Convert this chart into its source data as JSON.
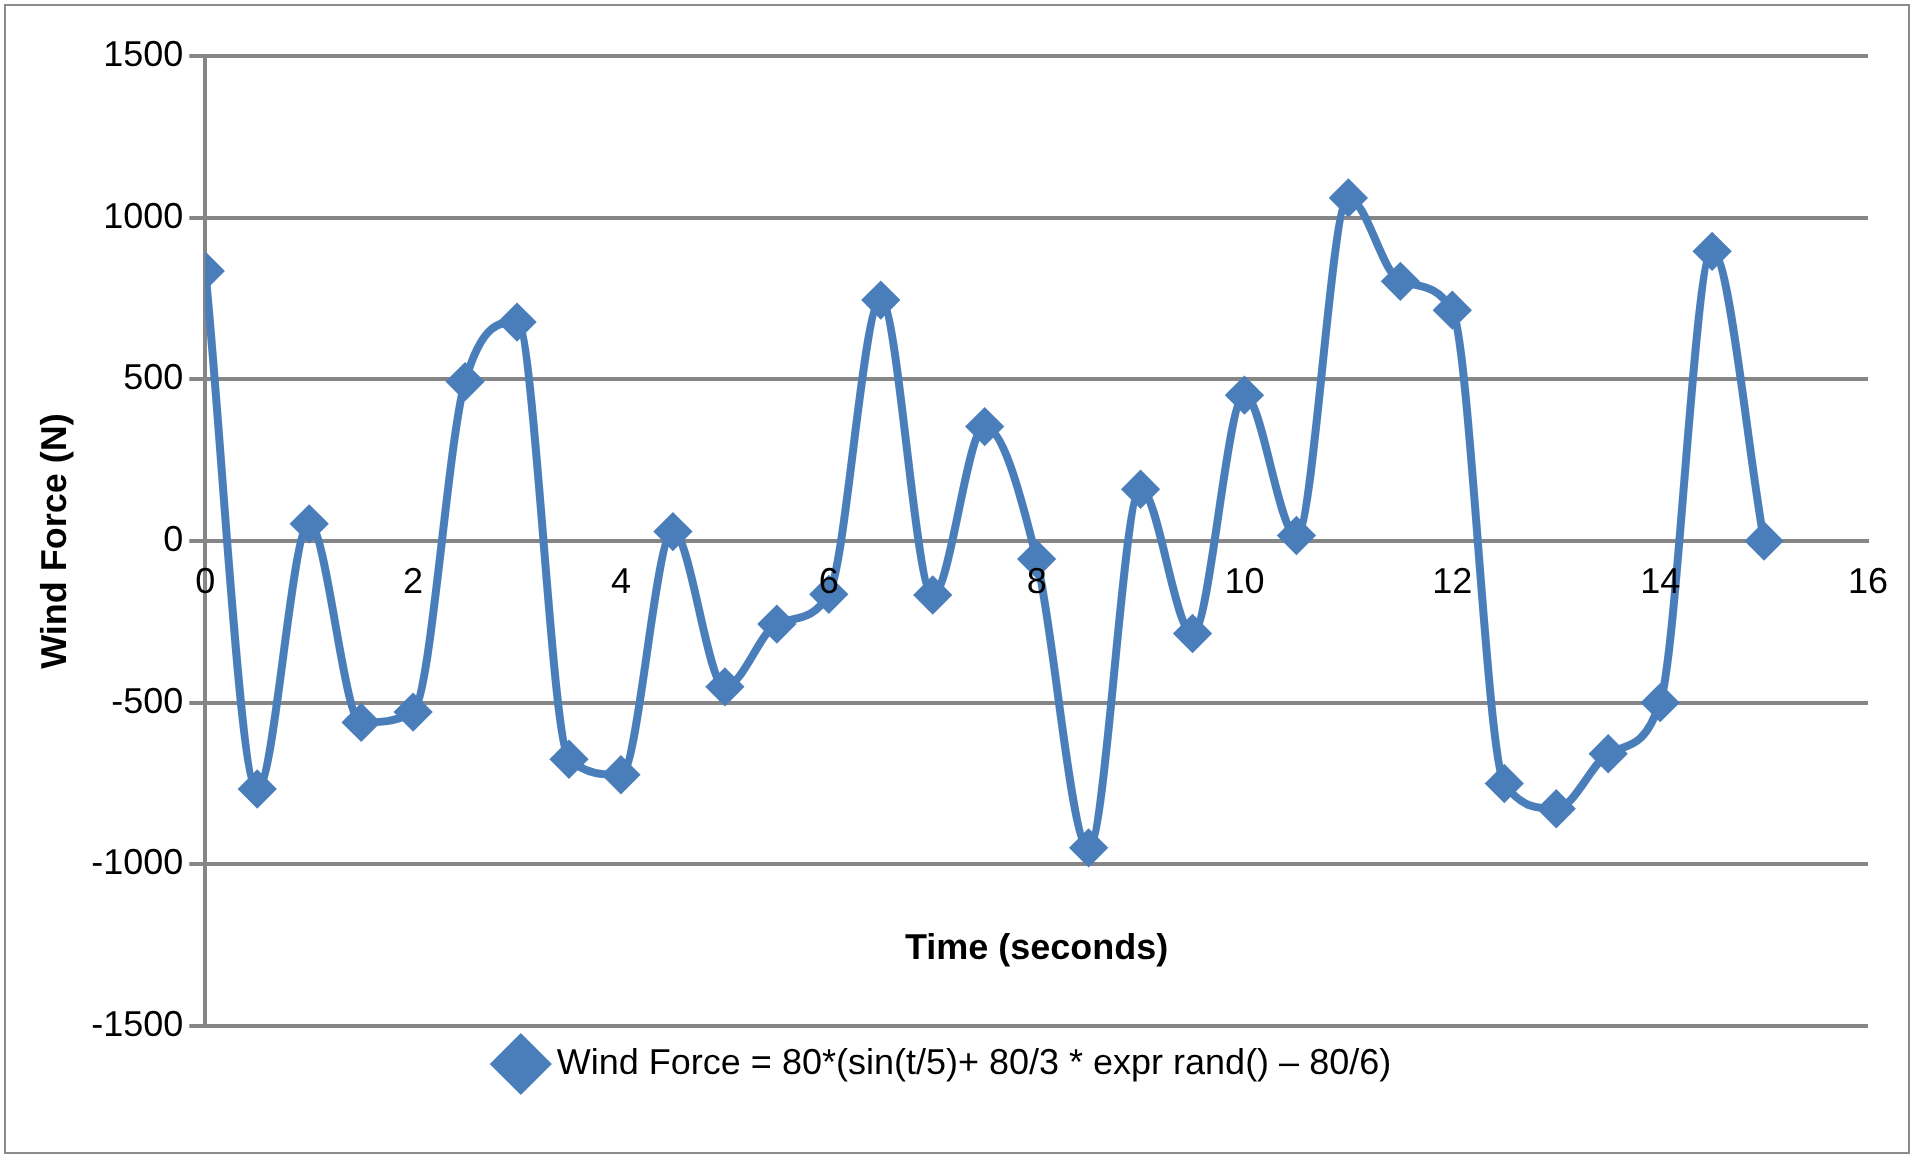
{
  "chart_data": {
    "type": "line",
    "xlabel": "Time (seconds)",
    "ylabel": "Wind Force (N)",
    "x": [
      0,
      0.5,
      1,
      1.5,
      2,
      2.5,
      3,
      3.5,
      4,
      4.5,
      5,
      5.5,
      6,
      6.5,
      7,
      7.5,
      8,
      8.5,
      9,
      9.5,
      10,
      10.5,
      11,
      11.5,
      12,
      12.5,
      13,
      13.5,
      14,
      14.5,
      15
    ],
    "series": [
      {
        "name": "Wind Force = 80*(sin(t/5)+ 80/3 * expr rand() – 80/6)",
        "color": "#4a7ebb",
        "values": [
          835,
          -767,
          53,
          -561,
          -529,
          493,
          677,
          -675,
          -723,
          29,
          -451,
          -257,
          -165,
          745,
          -167,
          354,
          -56,
          -949,
          160,
          -286,
          451,
          17,
          1061,
          803,
          714,
          -750,
          -828,
          -658,
          -500,
          896,
          0
        ]
      }
    ],
    "xlim": [
      0,
      16
    ],
    "xticks": [
      0,
      2,
      4,
      6,
      8,
      10,
      12,
      14,
      16
    ],
    "ylim": [
      -1500,
      1500
    ],
    "yticks": [
      {
        "value": -1500,
        "label": "-1500"
      },
      {
        "value": -1000,
        "label": "-1000"
      },
      -500,
      0,
      500,
      {
        "value": 1000,
        "label": "1000"
      },
      {
        "value": 1500,
        "label": "1500"
      }
    ],
    "grid": "y",
    "legend": "bottom",
    "marker": "diamond",
    "line_style": "solid"
  }
}
